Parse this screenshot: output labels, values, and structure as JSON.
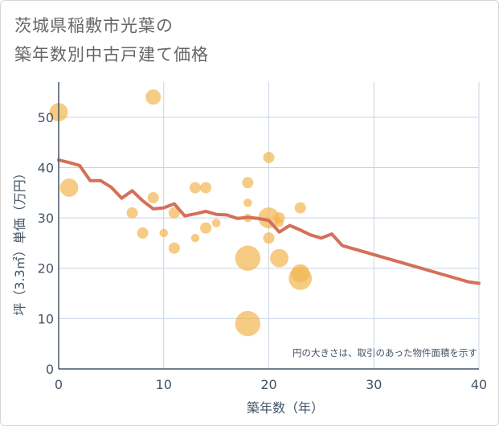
{
  "title_lines": [
    "茨城県稲敷市光葉の",
    "築年数別中古戸建て価格"
  ],
  "chart_data": {
    "type": "scatter",
    "xlabel": "築年数（年）",
    "ylabel": "坪（3.3㎡）単価（万円）",
    "xlim": [
      0,
      40
    ],
    "ylim": [
      0,
      57
    ],
    "x_ticks": [
      0,
      10,
      20,
      30,
      40
    ],
    "y_ticks": [
      0,
      10,
      20,
      30,
      40,
      50
    ],
    "grid": true,
    "note": "円の大きさは、取引のあった物件面積を示す",
    "colors": {
      "bubble": "#f2b54e",
      "line": "#d4705a",
      "grid": "#c8d4e4",
      "axis": "#445566"
    },
    "bubbles": [
      {
        "x": 0,
        "y": 51,
        "size": 3
      },
      {
        "x": 1,
        "y": 36,
        "size": 3
      },
      {
        "x": 7,
        "y": 31,
        "size": 1
      },
      {
        "x": 8,
        "y": 27,
        "size": 1
      },
      {
        "x": 9,
        "y": 54,
        "size": 2
      },
      {
        "x": 9,
        "y": 34,
        "size": 1
      },
      {
        "x": 10,
        "y": 27,
        "size": 0.5
      },
      {
        "x": 11,
        "y": 31,
        "size": 1
      },
      {
        "x": 11,
        "y": 24,
        "size": 1
      },
      {
        "x": 13,
        "y": 36,
        "size": 1
      },
      {
        "x": 13,
        "y": 26,
        "size": 0.5
      },
      {
        "x": 14,
        "y": 36,
        "size": 1
      },
      {
        "x": 14,
        "y": 28,
        "size": 1
      },
      {
        "x": 15,
        "y": 29,
        "size": 0.5
      },
      {
        "x": 18,
        "y": 37,
        "size": 1
      },
      {
        "x": 18,
        "y": 33,
        "size": 0.5
      },
      {
        "x": 18,
        "y": 30,
        "size": 0.5
      },
      {
        "x": 18,
        "y": 22,
        "size": 6
      },
      {
        "x": 18,
        "y": 9,
        "size": 6
      },
      {
        "x": 20,
        "y": 42,
        "size": 1
      },
      {
        "x": 20,
        "y": 30,
        "size": 4
      },
      {
        "x": 20,
        "y": 26,
        "size": 1
      },
      {
        "x": 21,
        "y": 30,
        "size": 1
      },
      {
        "x": 21,
        "y": 29,
        "size": 0.5
      },
      {
        "x": 21,
        "y": 22,
        "size": 3
      },
      {
        "x": 23,
        "y": 32,
        "size": 1
      },
      {
        "x": 23,
        "y": 18,
        "size": 5
      },
      {
        "x": 23,
        "y": 19,
        "size": 3
      }
    ],
    "trend": {
      "x": [
        0,
        1,
        2,
        3,
        4,
        5,
        6,
        7,
        8,
        9,
        10,
        11,
        12,
        13,
        14,
        15,
        16,
        17,
        18,
        19,
        20,
        21,
        22,
        23,
        24,
        25,
        26,
        27,
        28,
        29,
        30,
        31,
        32,
        33,
        34,
        35,
        36,
        37,
        38,
        39,
        40
      ],
      "y": [
        41.5,
        41,
        40.4,
        37.4,
        37.4,
        36.1,
        33.9,
        35.4,
        33.4,
        31.8,
        32,
        32.8,
        30.4,
        30.8,
        31.3,
        30.7,
        30.6,
        29.9,
        30.1,
        29.9,
        29.5,
        27.2,
        28.5,
        27.6,
        26.6,
        26,
        26.8,
        24.5,
        23.9,
        23.3,
        22.7,
        22.1,
        21.5,
        20.9,
        20.3,
        19.7,
        19.1,
        18.5,
        17.9,
        17.3,
        17
      ]
    }
  }
}
